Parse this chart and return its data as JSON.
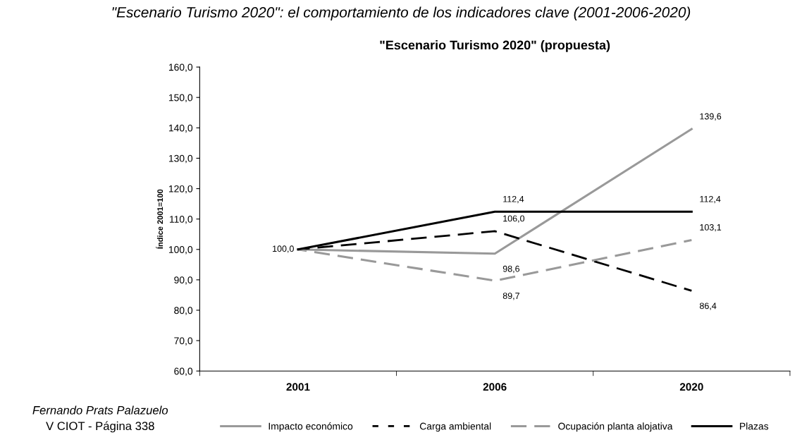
{
  "chart_data": {
    "type": "line",
    "title": "\"Escenario Turismo 2020\" (propuesta)",
    "ylabel": "Índice 2001=100",
    "categories": [
      "2001",
      "2006",
      "2020"
    ],
    "series": [
      {
        "name": "Impacto económico",
        "color": "#999999",
        "line_style": "solid",
        "values": [
          100.0,
          98.6,
          139.6
        ],
        "value_labels": [
          "100,0",
          "98,6",
          "139,6"
        ]
      },
      {
        "name": "Carga ambiental",
        "color": "#000000",
        "line_style": "dotted",
        "values": [
          100.0,
          106.0,
          86.4
        ],
        "value_labels": [
          null,
          "106,0",
          "86,4"
        ]
      },
      {
        "name": "Ocupación planta alojativa",
        "color": "#999999",
        "line_style": "dashed",
        "values": [
          100.0,
          89.7,
          103.1
        ],
        "value_labels": [
          null,
          "89,7",
          "103,1"
        ]
      },
      {
        "name": "Plazas",
        "color": "#000000",
        "line_style": "solid",
        "values": [
          100.0,
          112.4,
          112.4
        ],
        "value_labels": [
          null,
          "112,4",
          "112,4"
        ]
      }
    ],
    "ylim": [
      60,
      160
    ],
    "yticks": [
      {
        "value": 60,
        "label": "60,0"
      },
      {
        "value": 70,
        "label": "70,0"
      },
      {
        "value": 80,
        "label": "80,0"
      },
      {
        "value": 90,
        "label": "90,0"
      },
      {
        "value": 100,
        "label": "100,0"
      },
      {
        "value": 110,
        "label": "110,0"
      },
      {
        "value": 120,
        "label": "120,0"
      },
      {
        "value": 130,
        "label": "130,0"
      },
      {
        "value": 140,
        "label": "140,0"
      },
      {
        "value": 150,
        "label": "150,0"
      },
      {
        "value": 160,
        "label": "160,0"
      }
    ],
    "grid": false,
    "legend": "bottom",
    "marker": "none",
    "annotations": [
      "\"Escenario Turismo 2020\": el comportamiento de los indicadores clave (2001-2006-2020)",
      "Fernando Prats Palazuelo",
      "V CIOT - Página 338"
    ]
  }
}
